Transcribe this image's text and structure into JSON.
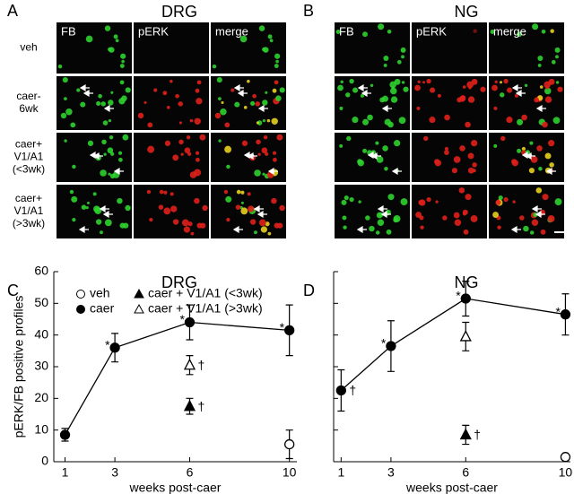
{
  "figure": {
    "panels": [
      {
        "letter": "A",
        "title": "DRG",
        "columns": [
          "FB",
          "pERK",
          "merge"
        ],
        "rows": [
          [
            "veh"
          ],
          [
            "caer-",
            "6wk"
          ],
          [
            "caer+",
            "V1/A1",
            "(<3wk)"
          ],
          [
            "caer+",
            "V1/A1",
            "(>3wk)"
          ]
        ]
      },
      {
        "letter": "B",
        "title": "NG",
        "columns": [
          "FB",
          "pERK",
          "merge"
        ]
      }
    ]
  },
  "chart_data": [
    {
      "type": "line",
      "letter": "C",
      "title": "DRG",
      "ylabel": "pERK/FB positive profiles",
      "xlabel": "weeks post-caer",
      "xlim": [
        0.55,
        10.3
      ],
      "xticks": [
        1,
        3,
        6,
        10
      ],
      "ylim": [
        0,
        60
      ],
      "yticks": [
        0,
        10,
        20,
        30,
        40,
        50,
        60
      ],
      "ytick_labels": true,
      "legend": "top",
      "series": [
        {
          "name": "veh",
          "marker": "open-circle",
          "color": "#000",
          "x": [
            10
          ],
          "values": [
            5.5
          ],
          "errors": [
            4.5
          ],
          "annotations": [
            null
          ]
        },
        {
          "name": "caer",
          "marker": "filled-circle",
          "color": "#000",
          "line": true,
          "x": [
            1,
            3,
            6,
            10
          ],
          "values": [
            8.5,
            36,
            44,
            41.5
          ],
          "errors": [
            2,
            4.5,
            5.5,
            8
          ],
          "annotations": [
            null,
            "*",
            "*",
            "*"
          ]
        },
        {
          "name": "caer + V1/A1 (<3wk)",
          "marker": "filled-triangle",
          "color": "#000",
          "x": [
            6
          ],
          "values": [
            17.5
          ],
          "errors": [
            2.5
          ],
          "annotations": [
            "†"
          ]
        },
        {
          "name": "caer + V1/A1 (>3wk)",
          "marker": "open-triangle",
          "color": "#000",
          "x": [
            6
          ],
          "values": [
            30.5
          ],
          "errors": [
            3
          ],
          "annotations": [
            "†"
          ]
        }
      ]
    },
    {
      "type": "line",
      "letter": "D",
      "title": "NG",
      "xlabel": "weeks post-caer",
      "xlim": [
        0.7,
        10.2
      ],
      "xticks": [
        1,
        3,
        6,
        10
      ],
      "ylim": [
        0,
        60
      ],
      "yticks": [
        0,
        10,
        20,
        30,
        40,
        50,
        60
      ],
      "ytick_labels": false,
      "series": [
        {
          "marker": "open-circle",
          "color": "#000",
          "x": [
            10
          ],
          "values": [
            1.5
          ],
          "errors": [
            0
          ],
          "annotations": [
            null
          ]
        },
        {
          "marker": "filled-circle",
          "color": "#000",
          "line": true,
          "x": [
            1,
            3,
            6,
            10
          ],
          "values": [
            22.5,
            36.5,
            51.5,
            46.5
          ],
          "errors": [
            6.5,
            8,
            5.5,
            6.5
          ],
          "annotations": [
            "†",
            "*",
            "*",
            "*"
          ]
        },
        {
          "marker": "filled-triangle",
          "color": "#000",
          "x": [
            6
          ],
          "values": [
            8.5
          ],
          "errors": [
            3
          ],
          "annotations": [
            "†"
          ]
        },
        {
          "marker": "open-triangle",
          "color": "#000",
          "x": [
            6
          ],
          "values": [
            39.5
          ],
          "errors": [
            4.5
          ],
          "annotations": [
            null
          ]
        }
      ]
    }
  ]
}
